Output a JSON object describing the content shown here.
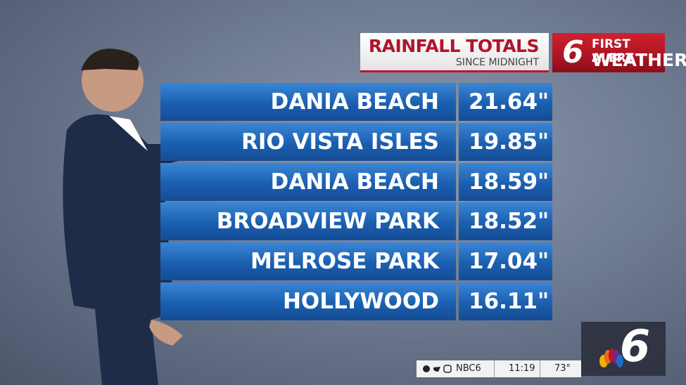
{
  "header": {
    "title": "RAINFALL TOTALS",
    "subtitle": "SINCE MIDNIGHT"
  },
  "brand": {
    "logo": "6",
    "line1": "FIRST ALERT",
    "line2": "WEATHER"
  },
  "table": {
    "rows": [
      [
        "DANIA BEACH",
        "21.64\""
      ],
      [
        "RIO VISTA ISLES",
        "19.85\""
      ],
      [
        "DANIA BEACH",
        "18.59\""
      ],
      [
        "BROADVIEW PARK",
        "18.52\""
      ],
      [
        "MELROSE PARK",
        "17.04\""
      ],
      [
        "HOLLYWOOD",
        "16.11\""
      ]
    ]
  },
  "ticker": {
    "handle": "NBC6",
    "time": "11:19",
    "temperature": "73°"
  },
  "corner_logo": "6"
}
